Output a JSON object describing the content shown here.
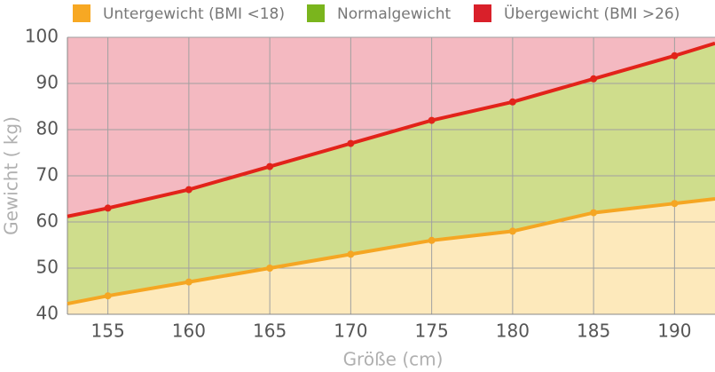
{
  "chart_data": {
    "type": "line",
    "x_label": "Größe (cm)",
    "y_label": "Gewicht ( kg)",
    "x": [
      152.5,
      155,
      160,
      165,
      170,
      175,
      180,
      185,
      190,
      192.5
    ],
    "legend": [
      {
        "name": "Untergewicht (BMI <18)",
        "color": "#f7a823",
        "fill": "#fde9bb"
      },
      {
        "name": "Normalgewicht",
        "color": "#7ab51d",
        "fill": "#cfdd8c"
      },
      {
        "name": "Übergewicht (BMI >26)",
        "color": "#d9202a",
        "fill": "#f4b9c1"
      }
    ],
    "series": [
      {
        "color": "#f5a623",
        "values": [
          42.3,
          44,
          47,
          50,
          53,
          56,
          58,
          62,
          64,
          65
        ]
      },
      {
        "color": "#e2231a",
        "values": [
          61.2,
          63,
          67,
          72,
          77,
          82,
          86,
          91,
          96,
          98.7
        ]
      }
    ],
    "xlim": [
      152.5,
      192.5
    ],
    "xticks": [
      155,
      160,
      165,
      170,
      175,
      180,
      185,
      190
    ],
    "ylim": [
      40,
      100
    ],
    "yticks": [
      40,
      50,
      60,
      70,
      80,
      90,
      100
    ],
    "grid": true
  }
}
